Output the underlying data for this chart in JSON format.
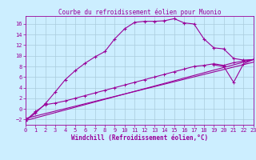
{
  "title": "Courbe du refroidissement éolien pour Muonio",
  "xlabel": "Windchill (Refroidissement éolien,°C)",
  "bg_color": "#cceeff",
  "line_color": "#990099",
  "grid_color": "#aaccdd",
  "xlim": [
    0,
    23
  ],
  "ylim": [
    -3,
    17.5
  ],
  "xticks": [
    0,
    1,
    2,
    3,
    4,
    5,
    6,
    7,
    8,
    9,
    10,
    11,
    12,
    13,
    14,
    15,
    16,
    17,
    18,
    19,
    20,
    21,
    22,
    23
  ],
  "yticks": [
    -2,
    0,
    2,
    4,
    6,
    8,
    10,
    12,
    14,
    16
  ],
  "curve1_x": [
    0,
    1,
    2,
    3,
    4,
    5,
    6,
    7,
    8,
    9,
    10,
    11,
    12,
    13,
    14,
    15,
    16,
    17,
    18,
    19,
    20,
    21,
    22,
    23
  ],
  "curve1_y": [
    -2.2,
    -0.8,
    1.0,
    3.2,
    5.5,
    7.2,
    8.6,
    9.8,
    10.8,
    13.2,
    15.1,
    16.3,
    16.5,
    16.5,
    16.6,
    17.0,
    16.2,
    16.0,
    13.2,
    11.5,
    11.3,
    9.5,
    9.2,
    9.3
  ],
  "curve2_x": [
    0,
    1,
    2,
    3,
    4,
    5,
    6,
    7,
    8,
    9,
    10,
    11,
    12,
    13,
    14,
    15,
    16,
    17,
    18,
    19,
    20,
    21,
    22,
    23
  ],
  "curve2_y": [
    -2.2,
    -0.5,
    0.8,
    1.1,
    1.5,
    2.0,
    2.5,
    3.0,
    3.5,
    4.0,
    4.5,
    5.0,
    5.5,
    6.0,
    6.5,
    7.0,
    7.5,
    8.0,
    8.2,
    8.5,
    8.2,
    8.7,
    9.0,
    9.3
  ],
  "curve3_x": [
    0,
    23
  ],
  "curve3_y": [
    -2.2,
    9.3
  ],
  "curve4_x": [
    0,
    23
  ],
  "curve4_y": [
    -1.8,
    8.8
  ],
  "curve5_x": [
    19,
    20,
    21,
    22,
    23
  ],
  "curve5_y": [
    8.3,
    8.0,
    5.0,
    8.5,
    9.3
  ],
  "title_fontsize": 5.5,
  "xlabel_fontsize": 5.5,
  "tick_fontsize": 5
}
